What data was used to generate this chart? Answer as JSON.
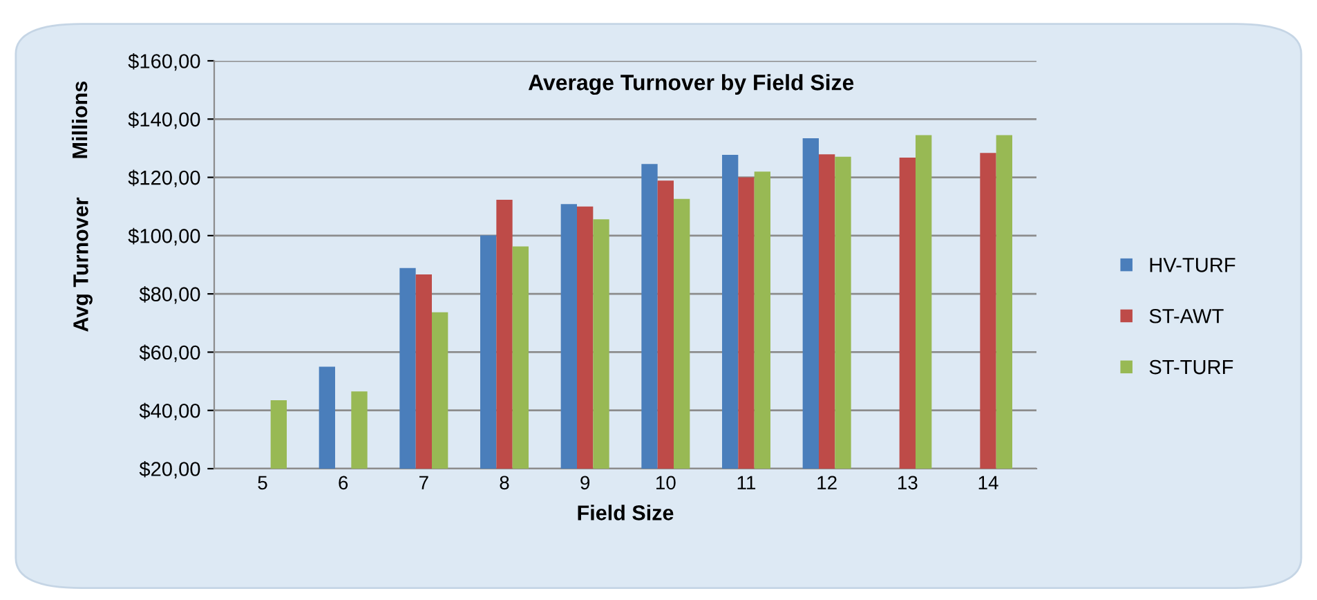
{
  "chart_data": {
    "type": "bar",
    "title": "Average Turnover by Field Size",
    "xlabel": "Field Size",
    "ylabel": "Avg Turnover",
    "annotations": [
      "Millions"
    ],
    "categories": [
      "5",
      "6",
      "7",
      "8",
      "9",
      "10",
      "11",
      "12",
      "13",
      "14"
    ],
    "series": [
      {
        "name": "HV-TURF",
        "color": "#4a7ebb",
        "values": [
          null,
          55,
          88.9,
          100.1,
          110.8,
          124.6,
          127.7,
          133.4,
          null,
          null
        ]
      },
      {
        "name": "ST-AWT",
        "color": "#be4b48",
        "values": [
          null,
          null,
          86.7,
          112.3,
          110,
          118.9,
          120,
          127.9,
          126.8,
          128.4
        ]
      },
      {
        "name": "ST-TURF",
        "color": "#98b954",
        "values": [
          43.5,
          46.5,
          73.7,
          96.3,
          105.6,
          112.6,
          122,
          127.1,
          134.5,
          134.5
        ]
      }
    ],
    "ylim": [
      20,
      160
    ],
    "yticks": [
      {
        "value": 20,
        "label": "$20,00"
      },
      {
        "value": 40,
        "label": "$40,00"
      },
      {
        "value": 60,
        "label": "$60,00"
      },
      {
        "value": 80,
        "label": "$80,00"
      },
      {
        "value": 100,
        "label": "$100,00"
      },
      {
        "value": 120,
        "label": "$120,00"
      },
      {
        "value": 140,
        "label": "$140,00"
      },
      {
        "value": 160,
        "label": "$160,00"
      }
    ],
    "grid": "y",
    "legend": "right"
  }
}
